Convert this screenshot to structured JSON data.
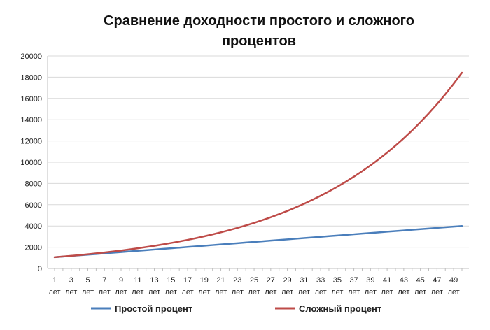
{
  "chart_data": {
    "type": "line",
    "title_lines": [
      "Сравнение доходности простого и сложного",
      "процентов"
    ],
    "xlabel": "",
    "ylabel": "",
    "ylim": [
      0,
      20000
    ],
    "y_ticks": [
      "0",
      "2000",
      "4000",
      "6000",
      "8000",
      "10000",
      "12000",
      "14000",
      "16000",
      "18000",
      "20000"
    ],
    "x_tick_numbers": [
      "1",
      "3",
      "5",
      "7",
      "9",
      "11",
      "13",
      "15",
      "17",
      "19",
      "21",
      "23",
      "25",
      "27",
      "29",
      "31",
      "33",
      "35",
      "37",
      "39",
      "41",
      "43",
      "45",
      "47",
      "49"
    ],
    "x_tick_unit": "лет",
    "x": [
      1,
      2,
      3,
      4,
      5,
      6,
      7,
      8,
      9,
      10,
      11,
      12,
      13,
      14,
      15,
      16,
      17,
      18,
      19,
      20,
      21,
      22,
      23,
      24,
      25,
      26,
      27,
      28,
      29,
      30,
      31,
      32,
      33,
      34,
      35,
      36,
      37,
      38,
      39,
      40,
      41,
      42,
      43,
      44,
      45,
      46,
      47,
      48,
      49,
      50
    ],
    "grid": true,
    "legend_position": "bottom",
    "colors": {
      "simple": "#4a7ebb",
      "compound": "#be4b48"
    },
    "series": [
      {
        "name": "Простой процент",
        "values": [
          1060,
          1120,
          1180,
          1240,
          1300,
          1360,
          1420,
          1480,
          1540,
          1600,
          1660,
          1720,
          1780,
          1840,
          1900,
          1960,
          2020,
          2080,
          2140,
          2200,
          2260,
          2320,
          2380,
          2440,
          2500,
          2560,
          2620,
          2680,
          2740,
          2800,
          2860,
          2920,
          2980,
          3040,
          3100,
          3160,
          3220,
          3280,
          3340,
          3400,
          3460,
          3520,
          3580,
          3640,
          3700,
          3760,
          3820,
          3880,
          3940,
          4000
        ]
      },
      {
        "name": "Сложный процент",
        "values": [
          1060,
          1124,
          1191,
          1262,
          1338,
          1419,
          1504,
          1594,
          1689,
          1791,
          1898,
          2012,
          2133,
          2261,
          2397,
          2540,
          2693,
          2854,
          3026,
          3207,
          3400,
          3604,
          3820,
          4049,
          4292,
          4549,
          4822,
          5112,
          5418,
          5743,
          6088,
          6453,
          6841,
          7251,
          7686,
          8147,
          8636,
          9154,
          9704,
          10286,
          10903,
          11557,
          12250,
          12985,
          13765,
          14590,
          15466,
          16394,
          17378,
          18420
        ]
      }
    ]
  }
}
